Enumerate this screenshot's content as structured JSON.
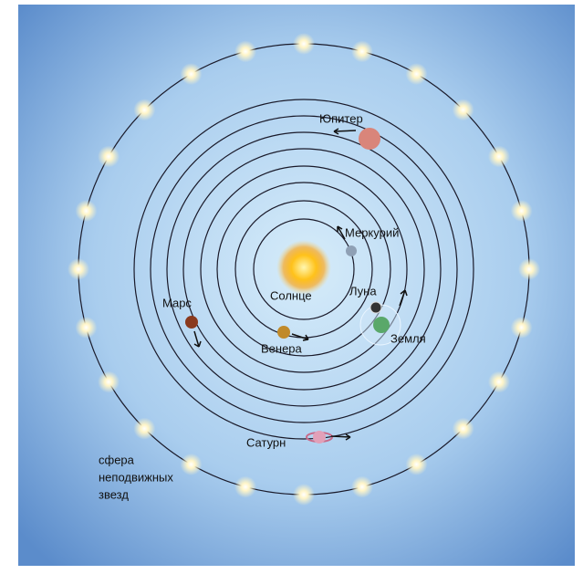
{
  "labels": {
    "jupiter": "Юпитер",
    "mercury": "Меркурий",
    "sun": "Солнце",
    "moon": "Луна",
    "mars": "Марс",
    "venus": "Венера",
    "earth": "Земля",
    "saturn": "Сатурн",
    "sphere": [
      "сфера",
      "неподвижных",
      "звезд"
    ]
  }
}
